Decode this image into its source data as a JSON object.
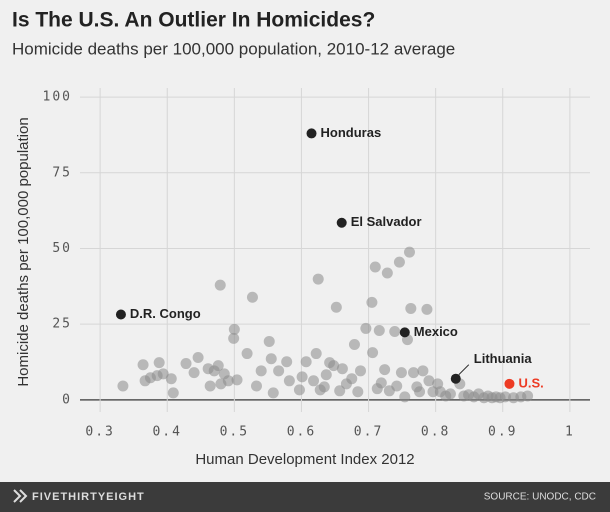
{
  "chart_data": {
    "type": "scatter",
    "title": "Is The U.S. An Outlier In Homicides?",
    "subtitle": "Homicide deaths per 100,000 population, 2010-12 average",
    "x_label": "Human Development Index 2012",
    "y_label": "Homicide deaths per 100,000 population",
    "xlim": [
      0.27,
      1.03
    ],
    "xticks": [
      0.3,
      0.4,
      0.5,
      0.6,
      0.7,
      0.8,
      0.9,
      1.0
    ],
    "ylim": [
      -4,
      103
    ],
    "yticks": [
      0,
      25,
      50,
      75,
      100
    ],
    "grid": true,
    "series": [
      {
        "color": "#8a8a8a",
        "x": [
          0.334,
          0.364,
          0.367,
          0.375,
          0.385,
          0.388,
          0.394,
          0.406,
          0.409,
          0.428,
          0.44,
          0.446,
          0.461,
          0.464,
          0.47,
          0.476,
          0.479,
          0.48,
          0.485,
          0.491,
          0.499,
          0.5,
          0.504,
          0.519,
          0.527,
          0.533,
          0.54,
          0.552,
          0.555,
          0.558,
          0.566,
          0.578,
          0.582,
          0.597,
          0.601,
          0.607,
          0.618,
          0.622,
          0.625,
          0.628,
          0.634,
          0.637,
          0.642,
          0.648,
          0.652,
          0.657,
          0.661,
          0.667,
          0.675,
          0.679,
          0.684,
          0.688,
          0.696,
          0.705,
          0.706,
          0.71,
          0.713,
          0.716,
          0.719,
          0.724,
          0.728,
          0.731,
          0.739,
          0.742,
          0.746,
          0.749,
          0.754,
          0.758,
          0.761,
          0.763,
          0.767,
          0.772,
          0.776,
          0.781,
          0.787,
          0.79,
          0.796,
          0.803,
          0.807,
          0.815,
          0.822,
          0.836,
          0.842,
          0.849,
          0.857,
          0.864,
          0.872,
          0.878,
          0.884,
          0.89,
          0.896,
          0.904,
          0.916,
          0.927,
          0.937
        ],
        "values": [
          4.6,
          11.6,
          6.3,
          7.3,
          8,
          12.3,
          8.6,
          7,
          2.3,
          12,
          9,
          14,
          10.3,
          4.6,
          9.6,
          11.3,
          37.9,
          5.3,
          8.6,
          6.3,
          20.3,
          23.3,
          6.6,
          15.3,
          33.9,
          4.6,
          9.6,
          19.3,
          13.6,
          2.3,
          9.6,
          12.6,
          6.3,
          3.3,
          7.6,
          12.6,
          6.3,
          15.3,
          39.9,
          3.3,
          4.3,
          8.3,
          12.3,
          11.3,
          30.6,
          3,
          10.3,
          5.3,
          7,
          18.3,
          2.7,
          9.6,
          23.6,
          32.2,
          15.6,
          43.9,
          3.7,
          22.9,
          5.6,
          10,
          41.9,
          3,
          22.6,
          4.6,
          45.5,
          9,
          1,
          19.9,
          48.8,
          30.2,
          9,
          4.3,
          2.7,
          9.6,
          29.9,
          6.3,
          2.7,
          5.3,
          2.7,
          1.3,
          2,
          5.3,
          1.3,
          1.7,
          1,
          2,
          0.7,
          1.3,
          0.7,
          1,
          0.7,
          1,
          0.7,
          1,
          1.3
        ]
      }
    ],
    "highlights": [
      {
        "label": "Honduras",
        "x": 0.615,
        "y": 88,
        "color": "#222222"
      },
      {
        "label": "El Salvador",
        "x": 0.66,
        "y": 58.5,
        "color": "#222222"
      },
      {
        "label": "D.R. Congo",
        "x": 0.331,
        "y": 28.2,
        "color": "#222222"
      },
      {
        "label": "Mexico",
        "x": 0.754,
        "y": 22.3,
        "color": "#222222"
      },
      {
        "label": "Lithuania",
        "x": 0.83,
        "y": 7,
        "color": "#222222"
      },
      {
        "label": "U.S.",
        "x": 0.91,
        "y": 5.3,
        "color": "#ed3b24"
      }
    ]
  },
  "footer": {
    "brand": "FIVETHIRTYEIGHT",
    "source": "SOURCE: UNODC, CDC"
  }
}
